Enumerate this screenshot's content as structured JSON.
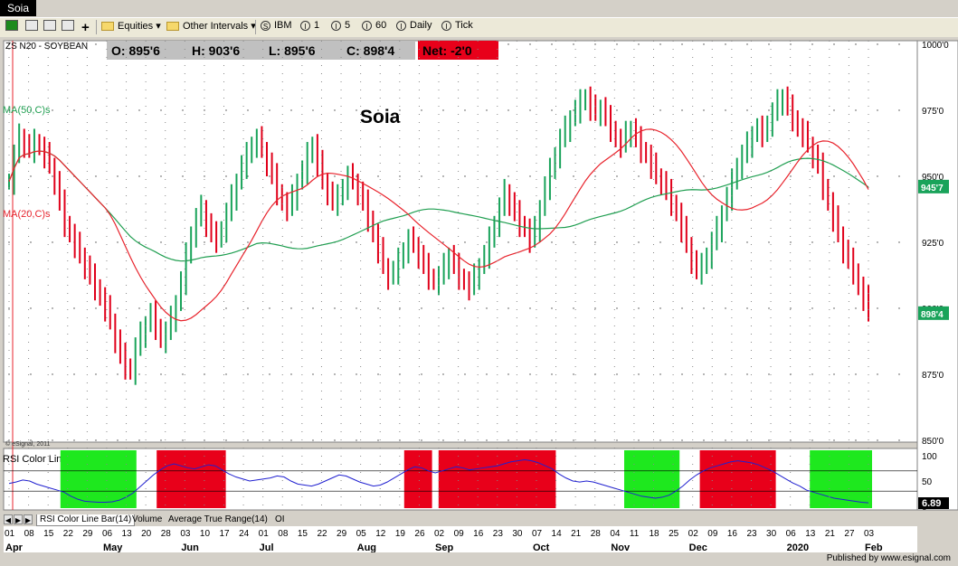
{
  "window": {
    "title": "Soia"
  },
  "toolbar": {
    "equities": "Equities",
    "other_intervals": "Other Intervals",
    "buttons": [
      {
        "glyph": "S",
        "label": "IBM"
      },
      {
        "glyph": "I",
        "label": "1"
      },
      {
        "glyph": "I",
        "label": "5"
      },
      {
        "glyph": "I",
        "label": "60"
      },
      {
        "glyph": "I",
        "label": "Daily"
      },
      {
        "glyph": "I",
        "label": "Tick"
      }
    ]
  },
  "chart_data": {
    "type": "candlestick",
    "symbol": "ZS N20 - SOYBEAN",
    "title": "Soia",
    "quote": {
      "open": "O: 895'6",
      "high": "H: 903'6",
      "low": "L: 895'6",
      "close": "C: 898'4",
      "net": "Net: -2'0"
    },
    "ylim": [
      850,
      1000
    ],
    "yticks": [
      "1000'0",
      "975'0",
      "950'0",
      "925'0",
      "900'0",
      "875'0",
      "850'0"
    ],
    "yticks_values": [
      1000,
      975,
      950,
      925,
      900,
      875,
      850
    ],
    "last_price_label": "898'4",
    "ma50_label": "945'7",
    "ma50_name": "MA(50,C)s",
    "ma20_name": "MA(20,C)s",
    "watermark": "© eSignal, 2011",
    "closes": [
      948,
      958,
      965,
      962,
      960,
      963,
      961,
      958,
      954,
      948,
      940,
      932,
      928,
      924,
      920,
      916,
      912,
      908,
      904,
      900,
      895,
      888,
      882,
      878,
      876,
      885,
      890,
      894,
      898,
      893,
      888,
      891,
      896,
      902,
      910,
      920,
      928,
      934,
      938,
      932,
      928,
      926,
      930,
      936,
      942,
      948,
      954,
      958,
      962,
      964,
      960,
      955,
      950,
      944,
      940,
      938,
      942,
      948,
      952,
      958,
      962,
      955,
      948,
      944,
      940,
      942,
      946,
      950,
      948,
      944,
      940,
      934,
      928,
      922,
      916,
      912,
      914,
      918,
      922,
      926,
      924,
      920,
      916,
      912,
      910,
      912,
      916,
      920,
      916,
      912,
      910,
      908,
      912,
      916,
      920,
      926,
      932,
      938,
      944,
      940,
      936,
      932,
      930,
      926,
      930,
      938,
      946,
      952,
      958,
      964,
      968,
      972,
      975,
      978,
      980,
      976,
      974,
      976,
      972,
      968,
      964,
      962,
      966,
      968,
      964,
      960,
      958,
      954,
      950,
      948,
      944,
      940,
      936,
      930,
      924,
      918,
      914,
      916,
      920,
      925,
      930,
      936,
      942,
      948,
      954,
      958,
      962,
      966,
      968,
      966,
      970,
      974,
      978,
      980,
      976,
      972,
      968,
      966,
      962,
      958,
      954,
      946,
      940,
      934,
      928,
      922,
      918,
      914,
      908,
      904,
      898
    ],
    "x_ticks": [
      "01",
      "08",
      "15",
      "22",
      "29",
      "06",
      "13",
      "20",
      "28",
      "03",
      "10",
      "17",
      "24",
      "01",
      "08",
      "15",
      "22",
      "29",
      "05",
      "12",
      "19",
      "26",
      "02",
      "09",
      "16",
      "23",
      "30",
      "07",
      "14",
      "21",
      "28",
      "04",
      "11",
      "18",
      "25",
      "02",
      "09",
      "16",
      "23",
      "30",
      "06",
      "13",
      "21",
      "27",
      "03"
    ],
    "months": [
      "Apr",
      "May",
      "Jun",
      "Jul",
      "Aug",
      "Sep",
      "Oct",
      "Nov",
      "Dec",
      "2020",
      "Feb"
    ],
    "rsi": {
      "name": "RSI Color Line Bar(14)",
      "current": "6.89",
      "yticks": [
        "100",
        "50",
        "0"
      ],
      "levels": [
        70,
        30
      ],
      "values": [
        45,
        48,
        52,
        50,
        44,
        40,
        36,
        32,
        28,
        20,
        14,
        10,
        9,
        8,
        8,
        9,
        12,
        18,
        26,
        38,
        50,
        62,
        72,
        80,
        84,
        80,
        76,
        74,
        78,
        82,
        80,
        72,
        64,
        58,
        54,
        50,
        52,
        54,
        56,
        60,
        58,
        50,
        44,
        42,
        40,
        44,
        50,
        56,
        62,
        60,
        54,
        48,
        44,
        40,
        42,
        48,
        56,
        64,
        72,
        78,
        76,
        70,
        66,
        70,
        74,
        78,
        76,
        72,
        74,
        76,
        78,
        80,
        84,
        88,
        90,
        92,
        90,
        86,
        80,
        74,
        64,
        56,
        50,
        48,
        50,
        48,
        44,
        40,
        36,
        32,
        28,
        24,
        20,
        18,
        16,
        18,
        22,
        30,
        40,
        52,
        62,
        70,
        76,
        80,
        84,
        88,
        90,
        88,
        86,
        82,
        76,
        70,
        62,
        54,
        46,
        40,
        32,
        28,
        24,
        20,
        16,
        14,
        12,
        10,
        8,
        7
      ]
    }
  },
  "tabs": [
    "RSI Color Line Bar(14)",
    "Volume",
    "Average True Range(14)",
    "OI"
  ],
  "status": "Published by www.esignal.com"
}
